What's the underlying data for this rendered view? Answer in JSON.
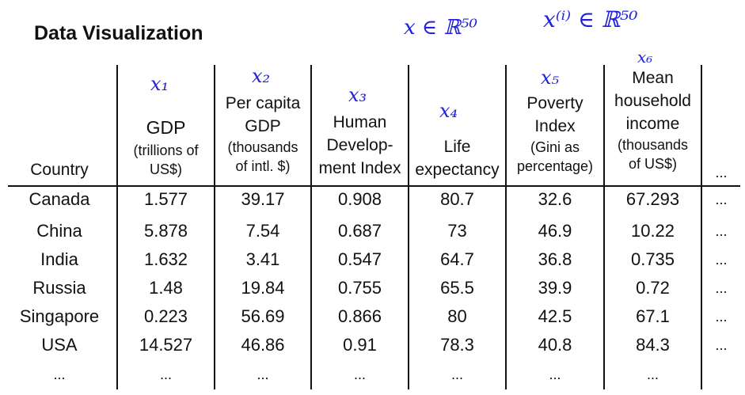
{
  "title": "Data Visualization",
  "annotations": {
    "x_in_r50": "x ∈ ℝ⁵⁰",
    "xi_in_r50": "x⁽ⁱ⁾ ∈ ℝ⁵⁰",
    "x1": "x₁",
    "x2": "x₂",
    "x3": "x₃",
    "x4": "x₄",
    "x5": "x₅",
    "x6": "x₆"
  },
  "columns": {
    "country": "Country",
    "gdp": {
      "main": "GDP",
      "sub1": "(trillions of",
      "sub2": "US$)"
    },
    "per_capita": {
      "l1": "Per capita",
      "l2": "GDP",
      "sub1": "(thousands",
      "sub2": "of intl. $)"
    },
    "hdi": {
      "l1": "Human",
      "l2": "Develop-",
      "l3": "ment Index"
    },
    "life": {
      "l1": "Life",
      "l2": "expectancy"
    },
    "poverty": {
      "l1": "Poverty",
      "l2": "Index",
      "sub1": "(Gini as",
      "sub2": "percentage)"
    },
    "income": {
      "l1": "Mean",
      "l2": "household",
      "l3": "income",
      "sub1": "(thousands",
      "sub2": "of US$)"
    },
    "more": "..."
  },
  "rows": [
    [
      "Canada",
      "1.577",
      "39.17",
      "0.908",
      "80.7",
      "32.6",
      "67.293",
      "..."
    ],
    [
      "China",
      "5.878",
      "7.54",
      "0.687",
      "73",
      "46.9",
      "10.22",
      "..."
    ],
    [
      "India",
      "1.632",
      "3.41",
      "0.547",
      "64.7",
      "36.8",
      "0.735",
      "..."
    ],
    [
      "Russia",
      "1.48",
      "19.84",
      "0.755",
      "65.5",
      "39.9",
      "0.72",
      "..."
    ],
    [
      "Singapore",
      "0.223",
      "56.69",
      "0.866",
      "80",
      "42.5",
      "67.1",
      "..."
    ],
    [
      "USA",
      "14.527",
      "46.86",
      "0.91",
      "78.3",
      "40.8",
      "84.3",
      "..."
    ],
    [
      "...",
      "...",
      "...",
      "...",
      "...",
      "...",
      "...",
      ""
    ]
  ]
}
